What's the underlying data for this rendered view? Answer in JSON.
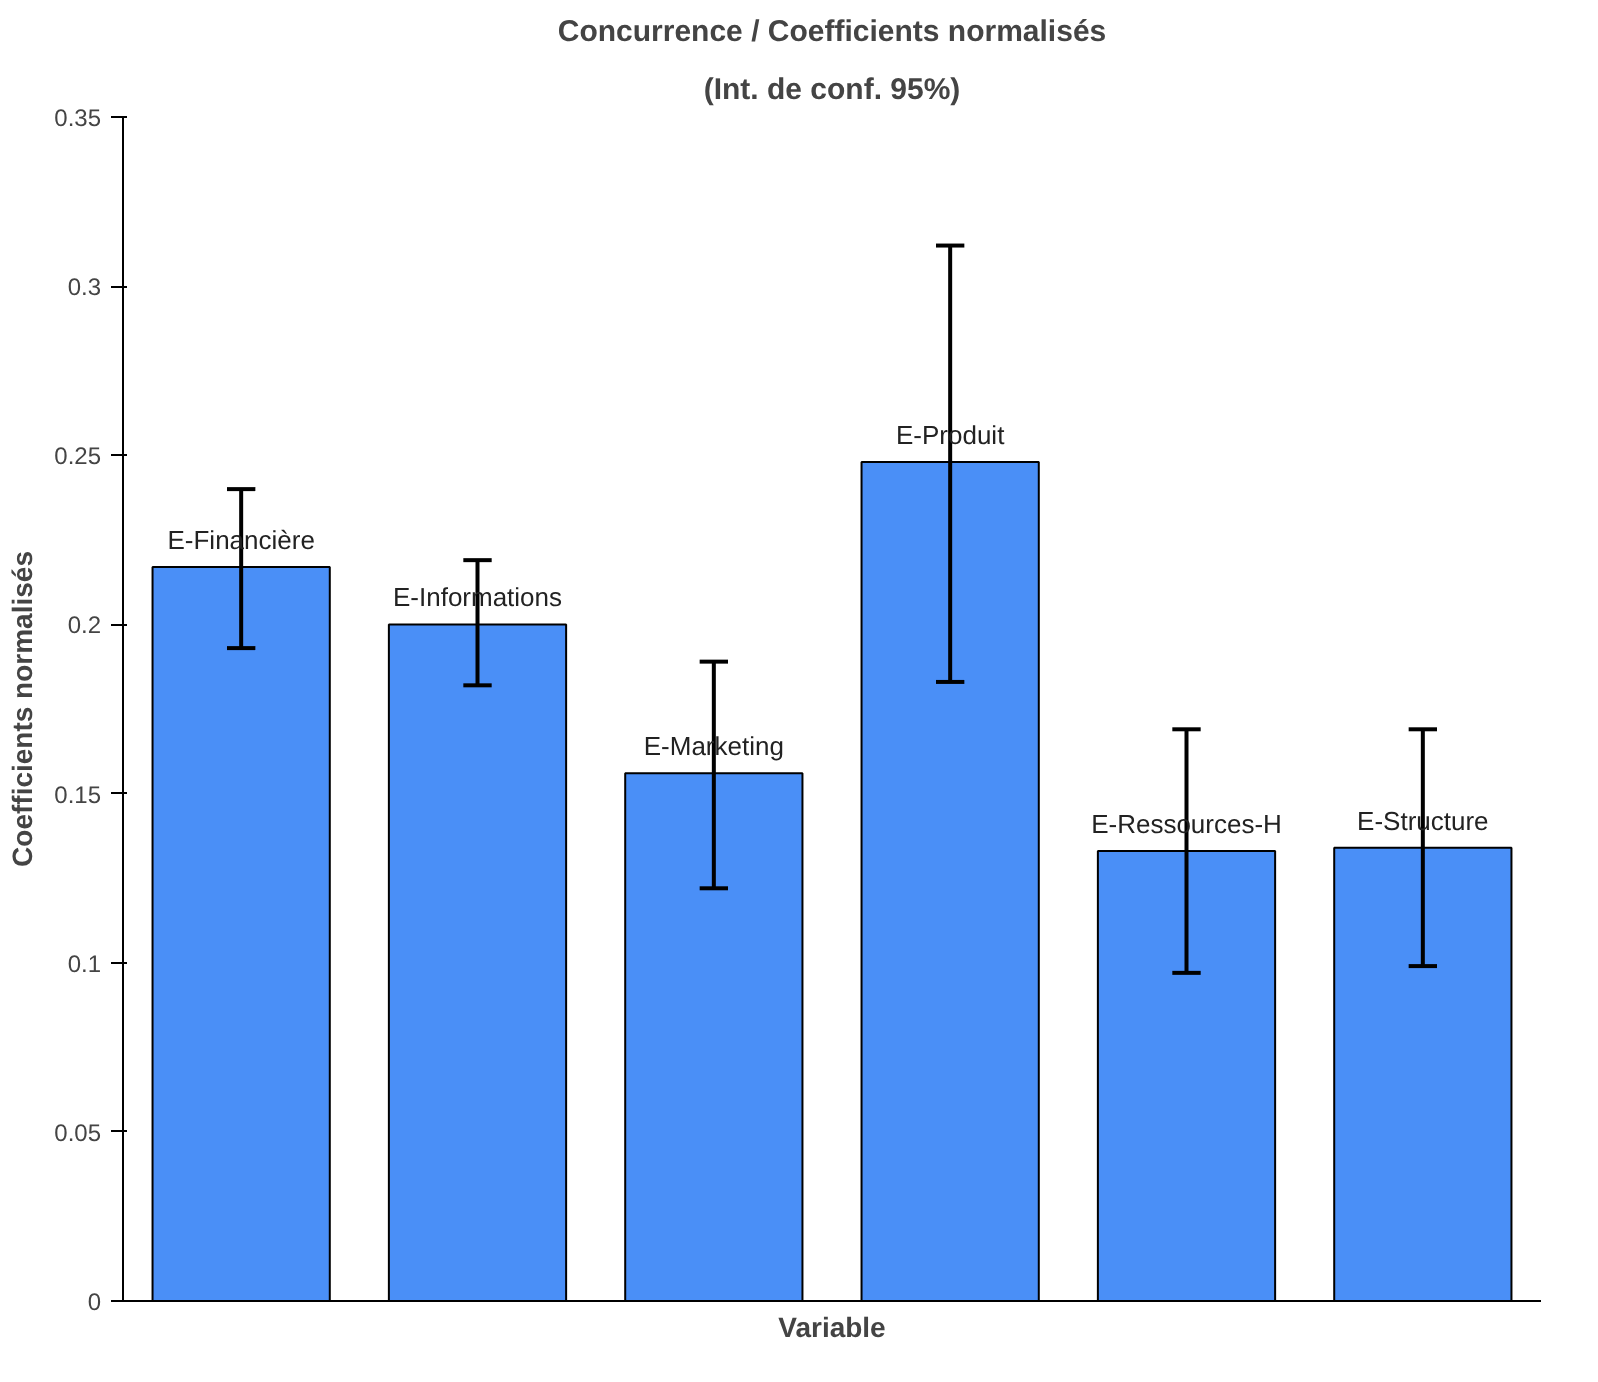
{
  "chart_data": {
    "type": "bar",
    "title": "Concurrence / Coefficients normalisés",
    "subtitle": "(Int. de conf. 95%)",
    "xlabel": "Variable",
    "ylabel": "Coefficients normalisés",
    "categories": [
      "E-Financière",
      "E-Informations",
      "E-Marketing",
      "E-Produit",
      "E-Ressources-H",
      "E-Structure"
    ],
    "values": [
      0.217,
      0.2,
      0.156,
      0.248,
      0.133,
      0.134
    ],
    "errors": [
      [
        0.193,
        0.24
      ],
      [
        0.182,
        0.219
      ],
      [
        0.122,
        0.189
      ],
      [
        0.183,
        0.312
      ],
      [
        0.097,
        0.169
      ],
      [
        0.099,
        0.169
      ]
    ],
    "color": "#4a8ff7",
    "ylim": [
      0,
      0.35
    ],
    "yticks": [
      0,
      0.05,
      0.1,
      0.15,
      0.2,
      0.25,
      0.3,
      0.35
    ],
    "tick_labels": "y",
    "grid": false
  }
}
